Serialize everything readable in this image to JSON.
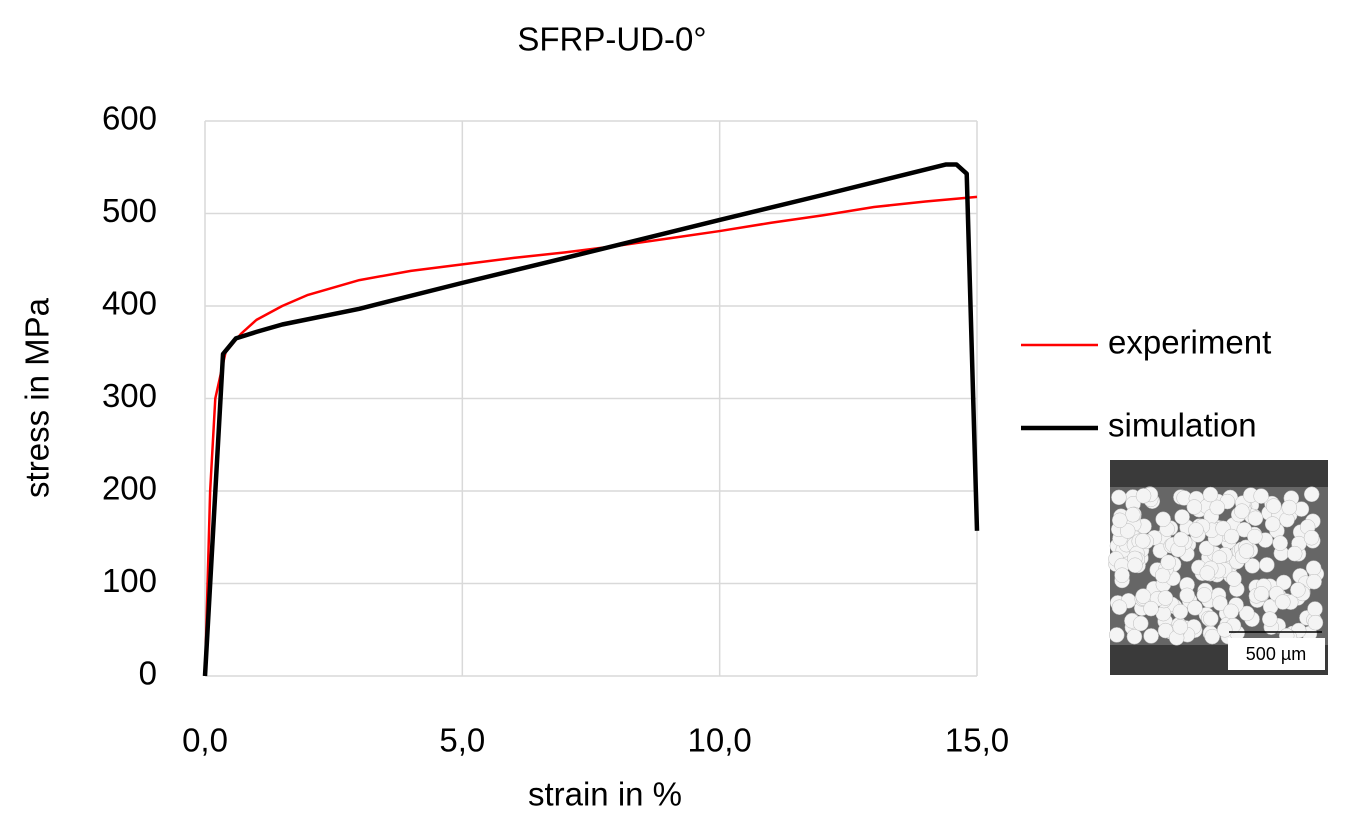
{
  "chart_data": {
    "type": "line",
    "title": "SFRP-UD-0°",
    "x_label": "strain in %",
    "y_label": "stress in MPa",
    "xlim": [
      0,
      15
    ],
    "ylim": [
      0,
      600
    ],
    "xticks": [
      {
        "value": 0,
        "label": "0,0"
      },
      {
        "value": 5,
        "label": "5,0"
      },
      {
        "value": 10,
        "label": "10,0"
      },
      {
        "value": 15,
        "label": "15,0"
      }
    ],
    "yticks": [
      0,
      100,
      200,
      300,
      400,
      500,
      600
    ],
    "grid": true,
    "legend": "right",
    "series": [
      {
        "name": "experiment",
        "color": "#ff0000",
        "x": [
          0,
          0.1,
          0.2,
          0.4,
          0.7,
          1,
          1.5,
          2,
          3,
          4,
          5,
          6,
          7,
          8,
          9,
          10,
          11,
          12,
          13,
          14,
          15
        ],
        "values": [
          0,
          200,
          300,
          350,
          370,
          385,
          400,
          412,
          428,
          438,
          445,
          452,
          458,
          465,
          473,
          481,
          490,
          498,
          507,
          513,
          518
        ]
      },
      {
        "name": "simulation",
        "color": "#000000",
        "x": [
          0,
          0.35,
          0.6,
          1,
          1.5,
          3,
          5,
          7,
          10,
          12,
          14.4,
          14.6,
          14.8,
          15
        ],
        "values": [
          0,
          348,
          365,
          372,
          380,
          397,
          425,
          452,
          493,
          520,
          553,
          553,
          543,
          157
        ]
      }
    ]
  },
  "inset": {
    "scale_label": "500 µm"
  }
}
